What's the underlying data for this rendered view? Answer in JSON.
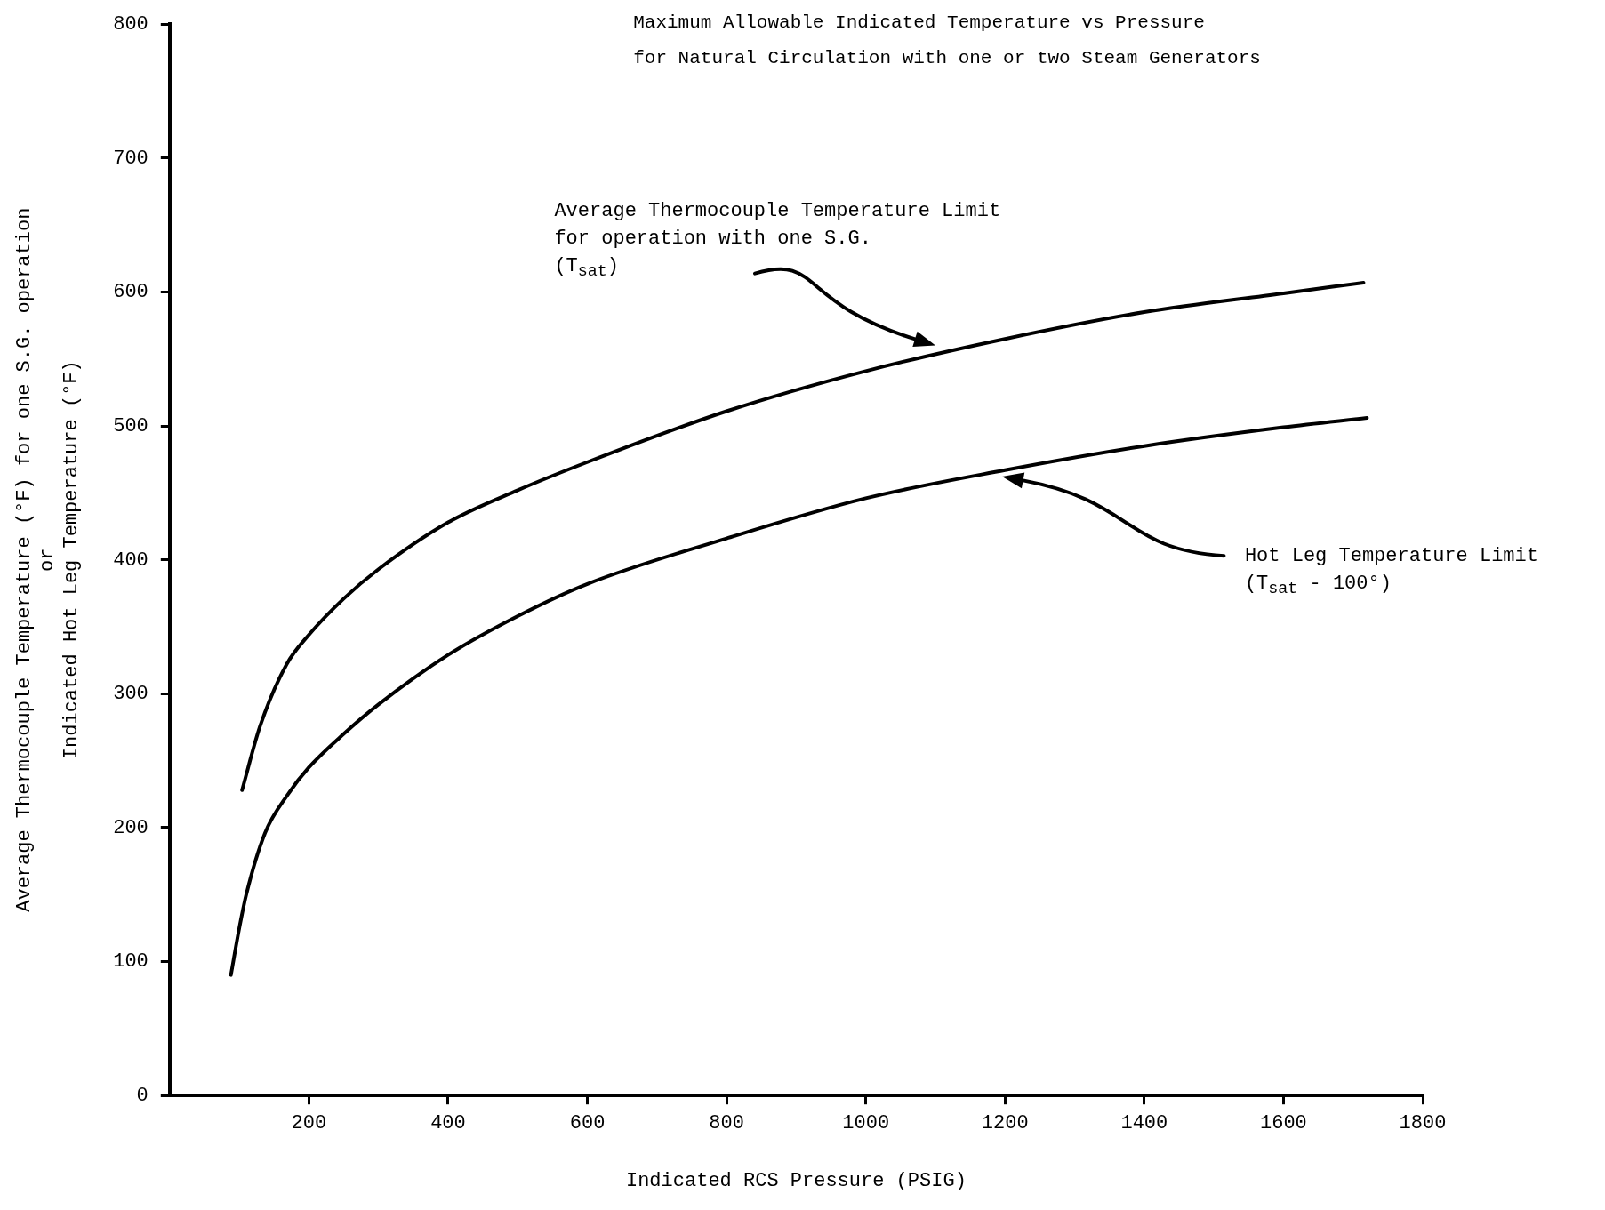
{
  "chart_data": {
    "type": "line",
    "title": "Maximum Allowable Indicated Temperature vs Pressure",
    "subtitle": "for Natural Circulation with one or two Steam Generators",
    "xlabel": "Indicated RCS Pressure (PSIG)",
    "ylabel": "Average Thermocouple Temperature (°F) for one S.G. operation\nor\nIndicated Hot Leg Temperature (°F)",
    "series": [
      {
        "color": "#000000",
        "x": [
          104,
          130,
          168,
          200,
          250,
          300,
          400,
          500,
          600,
          800,
          1000,
          1200,
          1400,
          1600,
          1715
        ],
        "values": [
          228,
          276,
          322,
          344,
          371,
          393,
          428,
          452,
          473,
          511,
          541,
          565,
          585,
          599,
          607
        ]
      },
      {
        "color": "#000000",
        "x": [
          88,
          100,
          110,
          137,
          170,
          200,
          250,
          300,
          400,
          500,
          600,
          800,
          1000,
          1200,
          1400,
          1600,
          1720
        ],
        "values": [
          90,
          125,
          150,
          196,
          225,
          245,
          270,
          292,
          329,
          358,
          382,
          416,
          446,
          467,
          485,
          499,
          506
        ]
      }
    ],
    "annotations": [
      "Average Thermocouple Temperature Limit\nfor operation with one S.G.\n(T$_{sat}$)",
      "Hot Leg Temperature Limit\n(T$_{sat}$ - 100°)"
    ],
    "xlim": [
      0,
      1800
    ],
    "xticks": [
      200,
      400,
      600,
      800,
      1000,
      1200,
      1400,
      1600,
      1800
    ],
    "ylim": [
      0,
      800
    ],
    "yticks": [
      0,
      100,
      200,
      300,
      400,
      500,
      600,
      700,
      800
    ],
    "grid": false,
    "legend": false,
    "marker": "none",
    "line_style": "solid"
  }
}
